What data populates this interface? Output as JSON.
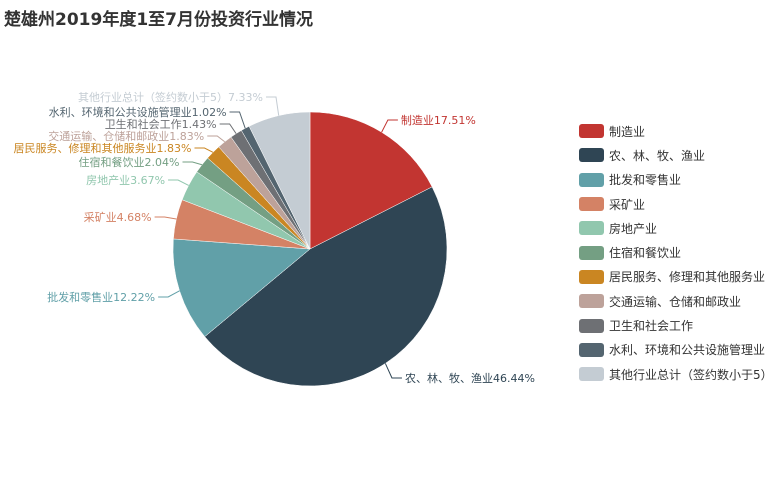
{
  "chart_data": {
    "type": "pie",
    "title": "楚雄州2019年度1至7月份投资行业情况",
    "legend_position": "right",
    "slices": [
      {
        "name": "制造业",
        "label": "制造业17.51%",
        "value": 17.51,
        "color": "#c23531"
      },
      {
        "name": "农、林、牧、渔业",
        "label": "农、林、牧、渔业46.44%",
        "value": 46.44,
        "color": "#2f4554"
      },
      {
        "name": "批发和零售业",
        "label": "批发和零售业12.22%",
        "value": 12.22,
        "color": "#61a0a8"
      },
      {
        "name": "采矿业",
        "label": "采矿业4.68%",
        "value": 4.68,
        "color": "#d48265"
      },
      {
        "name": "房地产业",
        "label": "房地产业3.67%",
        "value": 3.67,
        "color": "#91c7ae"
      },
      {
        "name": "住宿和餐饮业",
        "label": "住宿和餐饮业2.04%",
        "value": 2.04,
        "color": "#749f83"
      },
      {
        "name": "居民服务、修理和其他服务业",
        "label": "居民服务、修理和其他服务业1.83%",
        "value": 1.83,
        "color": "#ca8622"
      },
      {
        "name": "交通运输、仓储和邮政业",
        "label": "交通运输、仓储和邮政业1.83%",
        "value": 1.83,
        "color": "#bda29a"
      },
      {
        "name": "卫生和社会工作",
        "label": "卫生和社会工作1.43%",
        "value": 1.43,
        "color": "#6e7074"
      },
      {
        "name": "水利、环境和公共设施管理业",
        "label": "水利、环境和公共设施管理业1.02%",
        "value": 1.02,
        "color": "#546570"
      },
      {
        "name": "其他行业总计（签约数小于5）",
        "label": "其他行业总计（签约数小于5）7.33%",
        "value": 7.33,
        "color": "#c4ccd3"
      }
    ]
  }
}
